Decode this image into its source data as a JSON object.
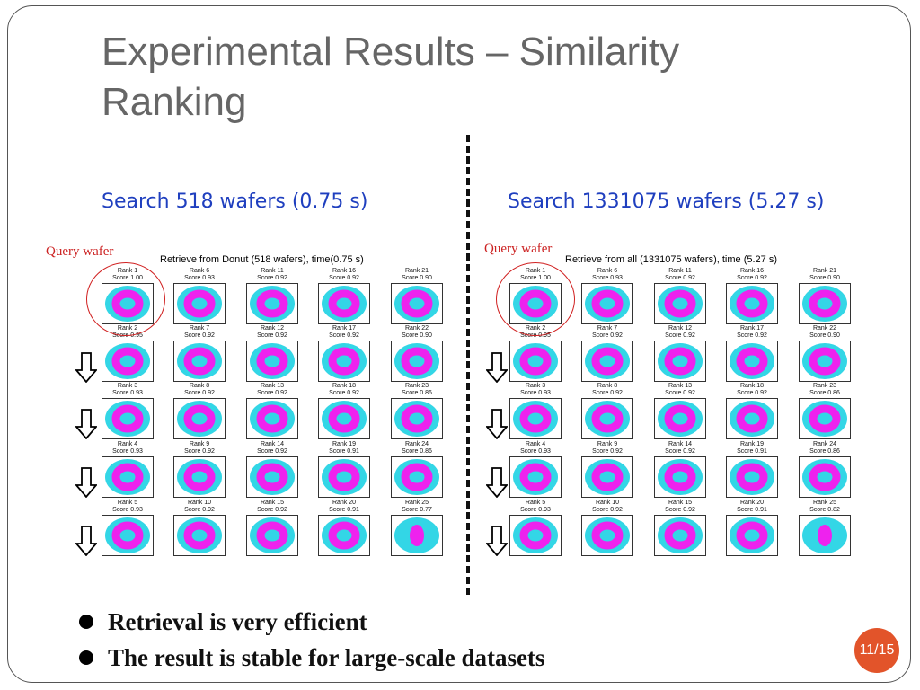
{
  "slide": {
    "title": "Experimental Results – Similarity Ranking",
    "left_subtitle": "Search 518 wafers (0.75 s)",
    "right_subtitle": "Search 1331075 wafers (5.27 s)",
    "query_label": "Query wafer",
    "page_number": "11/15"
  },
  "colors": {
    "accent": "#1f3fbf",
    "query": "#cc2222",
    "badge": "#e2542a",
    "wafer_bg": "#33d6e6",
    "defect": "#ee22ee"
  },
  "left_panel": {
    "header": "Retrieve from Donut (518 wafers), time(0.75 s)",
    "ranks": [
      "Rank 1",
      "Rank 6",
      "Rank 11",
      "Rank 16",
      "Rank 21",
      "Rank 2",
      "Rank 7",
      "Rank 12",
      "Rank 17",
      "Rank 22",
      "Rank 3",
      "Rank 8",
      "Rank 13",
      "Rank 18",
      "Rank 23",
      "Rank 4",
      "Rank 9",
      "Rank 14",
      "Rank 19",
      "Rank 24",
      "Rank 5",
      "Rank 10",
      "Rank 15",
      "Rank 20",
      "Rank 25"
    ],
    "scores": [
      "Score 1.00",
      "Score 0.93",
      "Score 0.92",
      "Score 0.92",
      "Score 0.90",
      "Score 0.95",
      "Score 0.92",
      "Score 0.92",
      "Score 0.92",
      "Score 0.90",
      "Score 0.93",
      "Score 0.92",
      "Score 0.92",
      "Score 0.92",
      "Score 0.86",
      "Score 0.93",
      "Score 0.92",
      "Score 0.92",
      "Score 0.91",
      "Score 0.86",
      "Score 0.93",
      "Score 0.92",
      "Score 0.92",
      "Score 0.91",
      "Score 0.77"
    ]
  },
  "right_panel": {
    "header": "Retrieve from all (1331075 wafers), time (5.27 s)",
    "ranks": [
      "Rank 1",
      "Rank 6",
      "Rank 11",
      "Rank 16",
      "Rank 21",
      "Rank 2",
      "Rank 7",
      "Rank 12",
      "Rank 17",
      "Rank 22",
      "Rank 3",
      "Rank 8",
      "Rank 13",
      "Rank 18",
      "Rank 23",
      "Rank 4",
      "Rank 9",
      "Rank 14",
      "Rank 19",
      "Rank 24",
      "Rank 5",
      "Rank 10",
      "Rank 15",
      "Rank 20",
      "Rank 25"
    ],
    "scores": [
      "Score 1.00",
      "Score 0.93",
      "Score 0.92",
      "Score 0.92",
      "Score 0.90",
      "Score 0.95",
      "Score 0.92",
      "Score 0.92",
      "Score 0.92",
      "Score 0.90",
      "Score 0.93",
      "Score 0.92",
      "Score 0.92",
      "Score 0.92",
      "Score 0.86",
      "Score 0.93",
      "Score 0.92",
      "Score 0.92",
      "Score 0.91",
      "Score 0.86",
      "Score 0.93",
      "Score 0.92",
      "Score 0.92",
      "Score 0.91",
      "Score 0.82"
    ]
  },
  "bullets": [
    "Retrieval is very efficient",
    "The result is stable for large-scale datasets"
  ]
}
